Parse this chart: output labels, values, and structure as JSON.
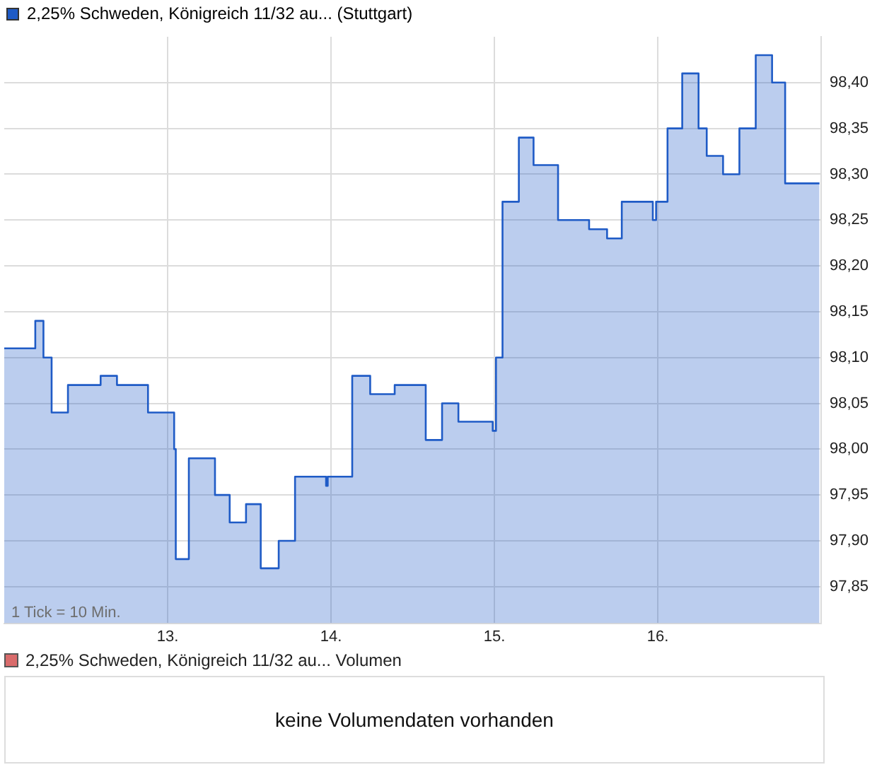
{
  "chart_data": [
    {
      "type": "area",
      "legend": "top left",
      "grid": true,
      "x": [
        12.0,
        12.19,
        12.19,
        12.24,
        12.24,
        12.29,
        12.29,
        12.39,
        12.39,
        12.59,
        12.59,
        12.69,
        12.69,
        12.88,
        12.88,
        13.04,
        13.04,
        13.05,
        13.05,
        13.13,
        13.13,
        13.29,
        13.29,
        13.38,
        13.38,
        13.48,
        13.48,
        13.57,
        13.57,
        13.68,
        13.68,
        13.78,
        13.78,
        13.97,
        13.97,
        13.98,
        13.98,
        14.13,
        14.13,
        14.24,
        14.24,
        14.39,
        14.39,
        14.58,
        14.58,
        14.68,
        14.68,
        14.78,
        14.78,
        14.99,
        14.99,
        15.01,
        15.01,
        15.05,
        15.05,
        15.15,
        15.15,
        15.24,
        15.24,
        15.39,
        15.39,
        15.58,
        15.58,
        15.69,
        15.69,
        15.78,
        15.78,
        15.97,
        15.97,
        15.99,
        15.99,
        16.06,
        16.06,
        16.15,
        16.15,
        16.25,
        16.25,
        16.3,
        16.3,
        16.4,
        16.4,
        16.5,
        16.5,
        16.6,
        16.6,
        16.7,
        16.7,
        16.78,
        16.78,
        16.99
      ],
      "series": [
        {
          "name": "2,25% Schweden, Königreich 11/32 au... (Stuttgart)",
          "color": "#1f5bc6",
          "values": [
            98.11,
            98.11,
            98.14,
            98.14,
            98.1,
            98.1,
            98.04,
            98.04,
            98.07,
            98.07,
            98.08,
            98.08,
            98.07,
            98.07,
            98.04,
            98.04,
            98.0,
            98.0,
            97.88,
            97.88,
            97.99,
            97.99,
            97.95,
            97.95,
            97.92,
            97.92,
            97.94,
            97.94,
            97.87,
            97.87,
            97.9,
            97.9,
            97.97,
            97.97,
            97.96,
            97.96,
            97.97,
            97.97,
            98.08,
            98.08,
            98.06,
            98.06,
            98.07,
            98.07,
            98.01,
            98.01,
            98.05,
            98.05,
            98.03,
            98.03,
            98.02,
            98.02,
            98.1,
            98.1,
            98.27,
            98.27,
            98.34,
            98.34,
            98.31,
            98.31,
            98.25,
            98.25,
            98.24,
            98.24,
            98.23,
            98.23,
            98.27,
            98.27,
            98.25,
            98.25,
            98.27,
            98.27,
            98.35,
            98.35,
            98.41,
            98.41,
            98.35,
            98.35,
            98.32,
            98.32,
            98.3,
            98.3,
            98.35,
            98.35,
            98.43,
            98.43,
            98.4,
            98.4,
            98.29,
            98.29
          ]
        }
      ],
      "xlim": [
        12,
        17
      ],
      "xticks": [
        {
          "value": 13,
          "label": "13."
        },
        {
          "value": 14,
          "label": "14."
        },
        {
          "value": 15,
          "label": "15."
        },
        {
          "value": 16,
          "label": "16."
        }
      ],
      "ylim": [
        97.81,
        98.45
      ],
      "yticks": [
        {
          "value": 97.85,
          "label": "97,85"
        },
        {
          "value": 97.9,
          "label": "97,90"
        },
        {
          "value": 97.95,
          "label": "97,95"
        },
        {
          "value": 98.0,
          "label": "98,00"
        },
        {
          "value": 98.05,
          "label": "98,05"
        },
        {
          "value": 98.1,
          "label": "98,10"
        },
        {
          "value": 98.15,
          "label": "98,15"
        },
        {
          "value": 98.2,
          "label": "98,20"
        },
        {
          "value": 98.25,
          "label": "98,25"
        },
        {
          "value": 98.3,
          "label": "98,30"
        },
        {
          "value": 98.35,
          "label": "98,35"
        },
        {
          "value": 98.4,
          "label": "98,40"
        }
      ],
      "annotations": [
        "1 Tick = 10 Min."
      ]
    },
    {
      "type": "other",
      "title": "2,25% Schweden, Königreich 11/32 au... Volumen",
      "annotations": [
        "keine Volumendaten vorhanden"
      ]
    }
  ]
}
